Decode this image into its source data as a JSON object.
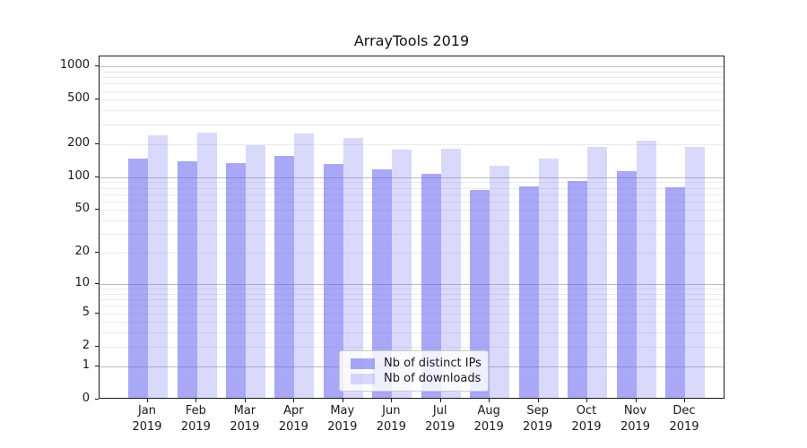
{
  "title": "ArrayTools 2019",
  "chart_data": {
    "type": "bar",
    "title": "ArrayTools 2019",
    "categories": [
      "Jan 2019",
      "Feb 2019",
      "Mar 2019",
      "Apr 2019",
      "May 2019",
      "Jun 2019",
      "Jul 2019",
      "Aug 2019",
      "Sep 2019",
      "Oct 2019",
      "Nov 2019",
      "Dec 2019"
    ],
    "series": [
      {
        "name": "Nb of distinct IPs",
        "color": "rgba(105,105,240,0.58)",
        "values": [
          142,
          135,
          128,
          150,
          126,
          114,
          103,
          74,
          80,
          89,
          110,
          78
        ]
      },
      {
        "name": "Nb of downloads",
        "color": "rgba(105,105,240,0.25)",
        "values": [
          230,
          245,
          186,
          240,
          218,
          170,
          175,
          122,
          142,
          182,
          207,
          180
        ]
      }
    ],
    "yscale": "log10(value+1)",
    "ylim": [
      0,
      1230
    ],
    "y_ticks": [
      1000,
      500,
      200,
      100,
      50,
      20,
      10,
      5,
      2,
      1,
      0
    ],
    "y_major_gridlines": [
      1,
      10,
      100,
      1000
    ],
    "y_minor_gridlines": [
      2,
      3,
      4,
      5,
      6,
      7,
      8,
      9,
      20,
      30,
      40,
      50,
      60,
      70,
      80,
      90,
      200,
      300,
      400,
      500,
      600,
      700,
      800,
      900
    ],
    "xlabel": "",
    "ylabel": "",
    "grid": "horizontal major+minor",
    "legend_position": "lower center",
    "colors": {
      "distinct_ips": "rgba(105,105,240,0.58)",
      "downloads": "rgba(105,105,240,0.25)",
      "major_grid": "#bdbdbd",
      "minor_grid": "#ebebeb"
    }
  }
}
